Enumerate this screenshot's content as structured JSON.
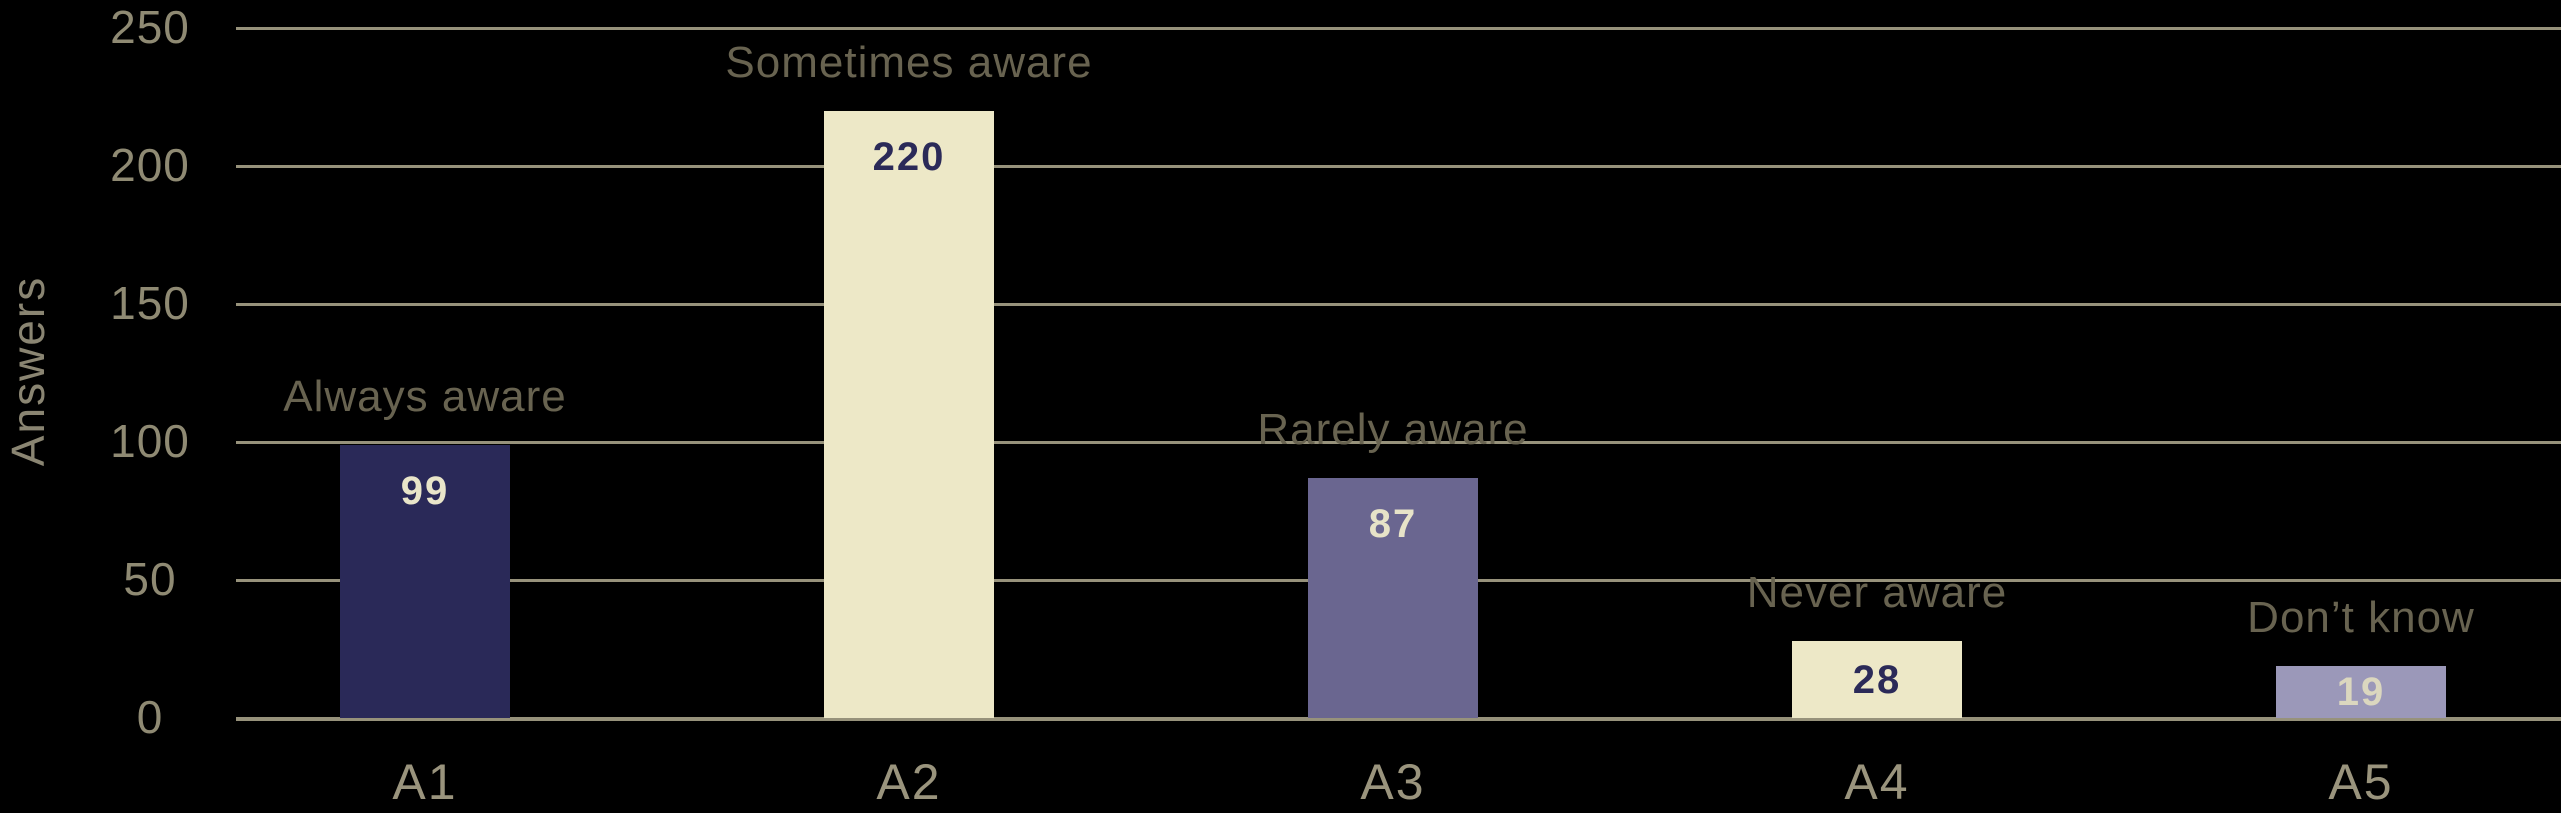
{
  "chart_data": {
    "type": "bar",
    "title": "",
    "ylabel": "Answers",
    "xlabel": "",
    "ylim": [
      0,
      250
    ],
    "yticks": [
      0,
      50,
      100,
      150,
      200,
      250
    ],
    "grid": "horizontal",
    "legend": false,
    "categories": [
      "A1",
      "A2",
      "A3",
      "A4",
      "A5"
    ],
    "series": [
      {
        "name": "Answers",
        "values": [
          99,
          220,
          87,
          28,
          19
        ]
      }
    ],
    "bars": [
      {
        "category": "A1",
        "label": "Always aware",
        "value": 99,
        "bar_color": "#2a2958",
        "value_text_color": "#e9e5c9"
      },
      {
        "category": "A2",
        "label": "Sometimes aware",
        "value": 220,
        "bar_color": "#ede8c7",
        "value_text_color": "#2b2a58"
      },
      {
        "category": "A3",
        "label": "Rarely aware",
        "value": 87,
        "bar_color": "#6a6690",
        "value_text_color": "#e7e3c8"
      },
      {
        "category": "A4",
        "label": "Never aware",
        "value": 28,
        "bar_color": "#ede8c7",
        "value_text_color": "#2b2a58"
      },
      {
        "category": "A5",
        "label": "Don’t know",
        "value": 19,
        "bar_color": "#9b98b9",
        "value_text_color": "#dbd7bf"
      }
    ],
    "colors": {
      "background": "#000000",
      "gridline": "#97927b",
      "y_tick_label": "#8f8a73",
      "y_axis_title": "#8a8572",
      "x_tick_label": "#9a947d",
      "bar_label": "#686350"
    }
  }
}
